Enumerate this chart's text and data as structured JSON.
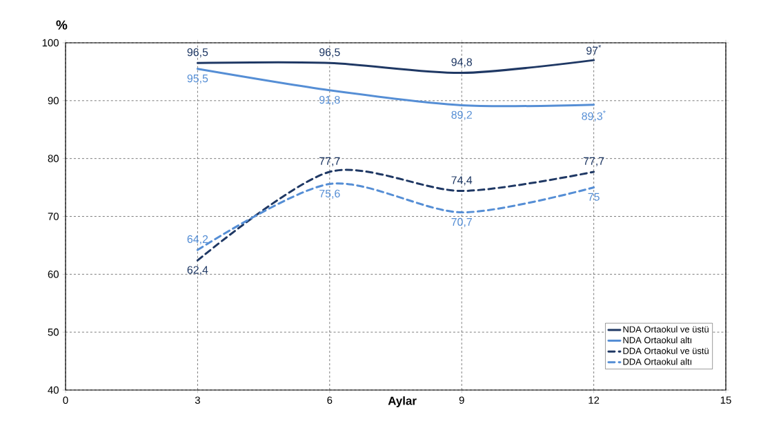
{
  "chart_data": {
    "type": "line",
    "xlabel": "Aylar",
    "ylabel": "%",
    "x": [
      3,
      6,
      9,
      12
    ],
    "xlim": [
      0,
      15
    ],
    "xticks": [
      0,
      3,
      6,
      9,
      12,
      15
    ],
    "ylim": [
      40,
      100
    ],
    "yticks": [
      40,
      50,
      60,
      70,
      80,
      90,
      100
    ],
    "grid": true,
    "legend": "bottom right",
    "series": [
      {
        "name": "NDA Ortaokul ve üstü",
        "color": "#1f3864",
        "line_style": "solid",
        "values": [
          96.5,
          96.5,
          94.8,
          97
        ],
        "value_labels": [
          "96,5",
          "96,5",
          "94,8",
          "97$^{*}$"
        ]
      },
      {
        "name": "NDA Ortaokul altı",
        "color": "#558ed5",
        "line_style": "solid",
        "values": [
          95.5,
          91.8,
          89.2,
          89.3
        ],
        "value_labels": [
          "95,5",
          "91,8",
          "89,2",
          "89,3$^{*}$"
        ]
      },
      {
        "name": "DDA Ortaokul ve üstü",
        "color": "#1f3864",
        "line_style": "dashed",
        "values": [
          62.4,
          77.7,
          74.4,
          77.7
        ],
        "value_labels": [
          "62,4",
          "77,7",
          "74,4",
          "77,7"
        ]
      },
      {
        "name": "DDA Ortaokul altı",
        "color": "#558ed5",
        "line_style": "dashed",
        "values": [
          64.2,
          75.6,
          70.7,
          75
        ],
        "value_labels": [
          "64,2",
          "75,6",
          "70,7",
          "75"
        ]
      }
    ]
  }
}
